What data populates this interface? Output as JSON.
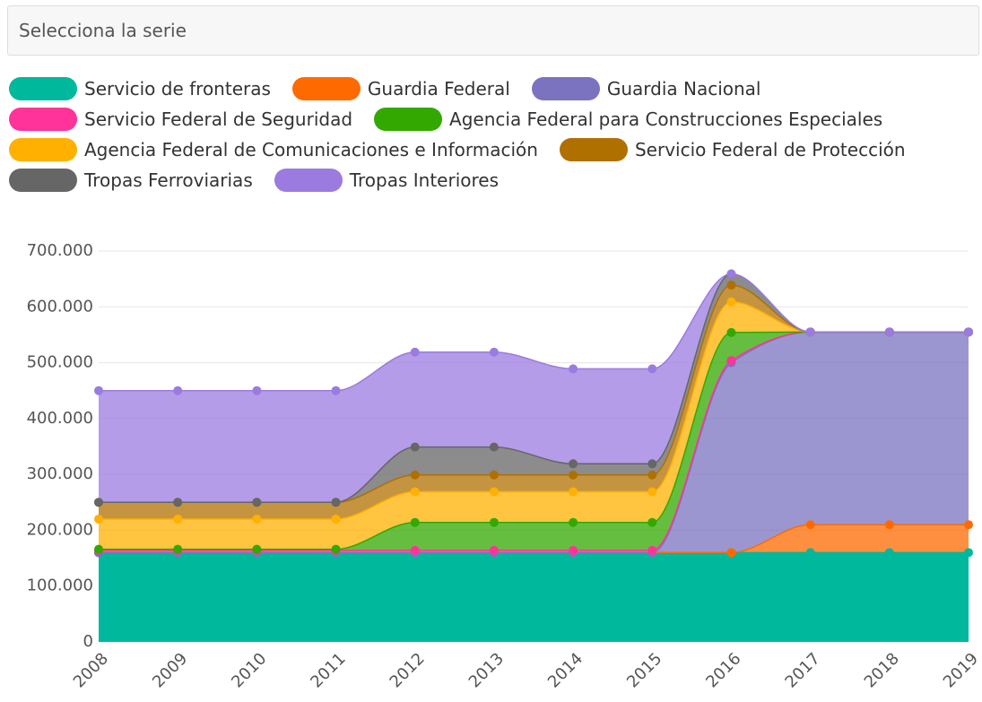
{
  "select_placeholder": "Selecciona la serie",
  "chart_data": {
    "type": "stacked_area",
    "categories": [
      "2008",
      "2009",
      "2010",
      "2011",
      "2012",
      "2013",
      "2014",
      "2015",
      "2016",
      "2017",
      "2018",
      "2019"
    ],
    "ylim": [
      0,
      700000
    ],
    "yticks": [
      0,
      {
        "value": 100000,
        "label": "100.000"
      },
      {
        "value": 200000,
        "label": "200.000"
      },
      {
        "value": 300000,
        "label": "300.000"
      },
      {
        "value": 400000,
        "label": "400.000"
      },
      {
        "value": 500000,
        "label": "500.000"
      },
      {
        "value": 600000,
        "label": "600.000"
      },
      {
        "value": 700000,
        "label": "700.000"
      }
    ],
    "grid": true,
    "series": [
      {
        "name": "Servicio de fronteras",
        "color": "#00b89c",
        "values": [
          160000,
          160000,
          160000,
          160000,
          160000,
          160000,
          160000,
          160000,
          160000,
          160000,
          160000,
          160000
        ]
      },
      {
        "name": "Guardia Federal",
        "color": "#ff6a00",
        "values": [
          0,
          0,
          0,
          0,
          0,
          0,
          0,
          0,
          0,
          50000,
          50000,
          50000
        ]
      },
      {
        "name": "Guardia Nacional",
        "color": "#7b73c0",
        "values": [
          0,
          0,
          0,
          0,
          0,
          0,
          0,
          0,
          340000,
          345000,
          345000,
          345000
        ]
      },
      {
        "name": "Servicio Federal de Seguridad",
        "color": "#ff3399",
        "values": [
          4000,
          4000,
          4000,
          4000,
          4000,
          4000,
          4000,
          4000,
          4000,
          0,
          0,
          0
        ]
      },
      {
        "name": "Agencia Federal para Construcciones Especiales",
        "color": "#33a800",
        "values": [
          2000,
          2000,
          2000,
          2000,
          50000,
          50000,
          50000,
          50000,
          50000,
          0,
          0,
          0
        ]
      },
      {
        "name": "Agencia Federal de Comunicaciones e Información",
        "color": "#ffb000",
        "values": [
          54000,
          54000,
          54000,
          54000,
          55000,
          55000,
          55000,
          55000,
          55000,
          0,
          0,
          0
        ]
      },
      {
        "name": "Servicio Federal de Protección",
        "color": "#b07000",
        "values": [
          30000,
          30000,
          30000,
          30000,
          30000,
          30000,
          30000,
          30000,
          30000,
          0,
          0,
          0
        ]
      },
      {
        "name": "Tropas Ferroviarias",
        "color": "#666666",
        "values": [
          0,
          0,
          0,
          0,
          50000,
          50000,
          20000,
          20000,
          20000,
          0,
          0,
          0
        ]
      },
      {
        "name": "Tropas Interiores",
        "color": "#9b7be0",
        "values": [
          200000,
          200000,
          200000,
          200000,
          170000,
          170000,
          170000,
          170000,
          0,
          0,
          0,
          0
        ]
      }
    ]
  }
}
